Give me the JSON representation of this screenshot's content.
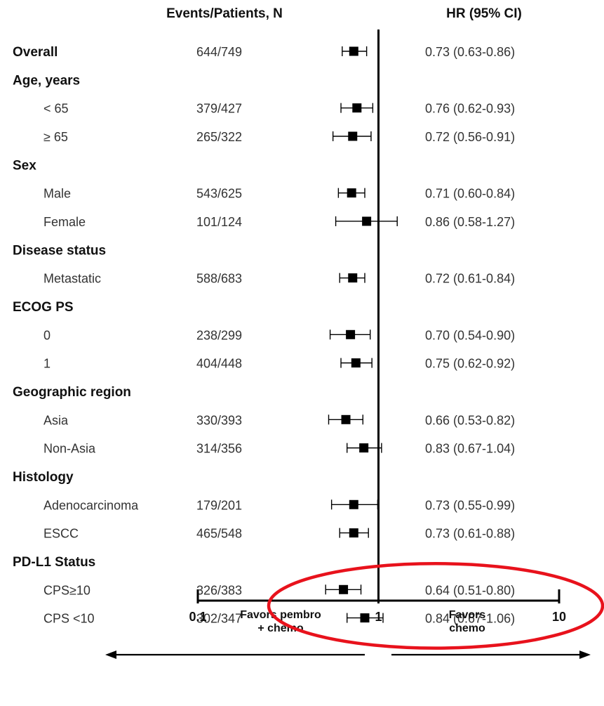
{
  "chart_data": {
    "type": "forest",
    "headers": {
      "counts": "Events/Patients, N",
      "effect": "HR (95%  CI)"
    },
    "scale": "log",
    "xlim": [
      0.1,
      10
    ],
    "x_ticks": [
      "0.1",
      "1",
      "10"
    ],
    "reference_line": 1,
    "favors_left": [
      "Favors  pembro",
      "+ chemo"
    ],
    "favors_right": [
      "Favors",
      "chemo"
    ],
    "rows": [
      {
        "label": "Overall",
        "group": true,
        "n": "644/749",
        "hr": 0.73,
        "lo": 0.63,
        "hi": 0.86,
        "hr_text": "0.73 (0.63-0.86)"
      },
      {
        "label": "Age, years",
        "group": true
      },
      {
        "label": "< 65",
        "n": "379/427",
        "hr": 0.76,
        "lo": 0.62,
        "hi": 0.93,
        "hr_text": "0.76 (0.62-0.93)"
      },
      {
        "label": "≥ 65",
        "n": "265/322",
        "hr": 0.72,
        "lo": 0.56,
        "hi": 0.91,
        "hr_text": "0.72 (0.56-0.91)"
      },
      {
        "label": "Sex",
        "group": true
      },
      {
        "label": "Male",
        "n": "543/625",
        "hr": 0.71,
        "lo": 0.6,
        "hi": 0.84,
        "hr_text": "0.71 (0.60-0.84)"
      },
      {
        "label": "Female",
        "n": "101/124",
        "hr": 0.86,
        "lo": 0.58,
        "hi": 1.27,
        "hr_text": "0.86 (0.58-1.27)"
      },
      {
        "label": "Disease status",
        "group": true
      },
      {
        "label": "Metastatic",
        "n": "588/683",
        "hr": 0.72,
        "lo": 0.61,
        "hi": 0.84,
        "hr_text": "0.72 (0.61-0.84)"
      },
      {
        "label": "ECOG PS",
        "group": true
      },
      {
        "label": "0",
        "n": "238/299",
        "hr": 0.7,
        "lo": 0.54,
        "hi": 0.9,
        "hr_text": "0.70 (0.54-0.90)"
      },
      {
        "label": "1",
        "n": "404/448",
        "hr": 0.75,
        "lo": 0.62,
        "hi": 0.92,
        "hr_text": "0.75  (0.62-0.92)"
      },
      {
        "label": "Geographic region",
        "group": true
      },
      {
        "label": "Asia",
        "n": "330/393",
        "hr": 0.66,
        "lo": 0.53,
        "hi": 0.82,
        "hr_text": "0.66  (0.53-0.82)"
      },
      {
        "label": "Non-Asia",
        "n": "314/356",
        "hr": 0.83,
        "lo": 0.67,
        "hi": 1.04,
        "hr_text": "0.83 (0.67-1.04)"
      },
      {
        "label": "Histology",
        "group": true
      },
      {
        "label": "Adenocarcinoma",
        "n": "179/201",
        "hr": 0.73,
        "lo": 0.55,
        "hi": 0.99,
        "hr_text": "0.73 (0.55-0.99)"
      },
      {
        "label": "ESCC",
        "n": "465/548",
        "hr": 0.73,
        "lo": 0.61,
        "hi": 0.88,
        "hr_text": "0.73  (0.61-0.88)"
      },
      {
        "label": "PD-L1 Status",
        "group": true
      },
      {
        "label": "CPS≥10",
        "n": "326/383",
        "hr": 0.64,
        "lo": 0.51,
        "hi": 0.8,
        "hr_text": "0.64 (0.51-0.80)",
        "highlight": true
      },
      {
        "label": "CPS <10",
        "n": "302/347",
        "hr": 0.84,
        "lo": 0.67,
        "hi": 1.06,
        "hr_text": "0.84 (0.67-1.06)",
        "highlight": true
      }
    ],
    "colors": {
      "marker": "#000000",
      "highlight": "#e8121c",
      "text": "#333333"
    }
  }
}
